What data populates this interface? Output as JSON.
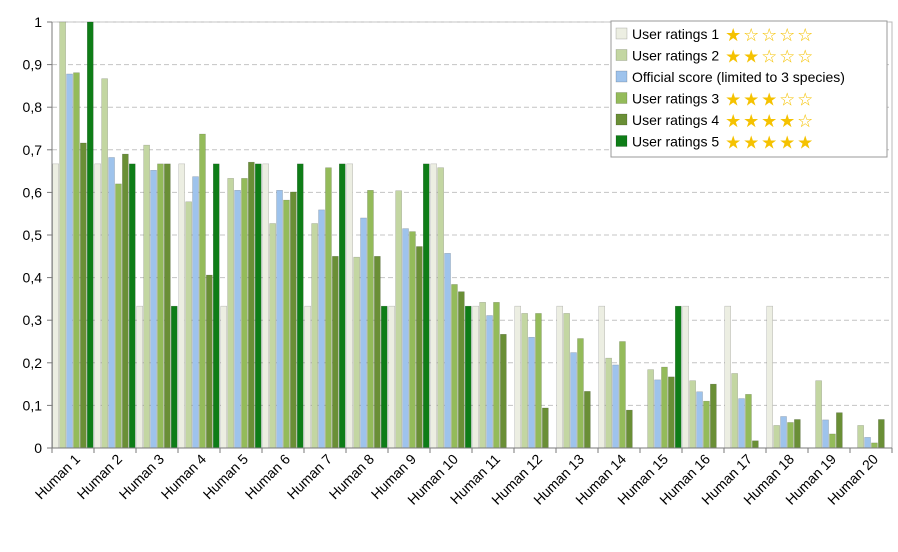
{
  "chart_data": {
    "type": "bar",
    "title": "",
    "xlabel": "",
    "ylabel": "",
    "ylim": [
      0,
      1
    ],
    "y_ticks": [
      "0",
      "0,1",
      "0,2",
      "0,3",
      "0,4",
      "0,5",
      "0,6",
      "0,7",
      "0,8",
      "0,9",
      "1"
    ],
    "y_tick_values": [
      0,
      0.1,
      0.2,
      0.3,
      0.4,
      0.5,
      0.6,
      0.7,
      0.8,
      0.9,
      1
    ],
    "grid": "horizontal dashed",
    "legend_position": "top-right",
    "categories": [
      "Human 1",
      "Human 2",
      "Human 3",
      "Human 4",
      "Human 5",
      "Human 6",
      "Human 7",
      "Human 8",
      "Human 9",
      "Human 10",
      "Human 11",
      "Human 12",
      "Human 13",
      "Human 14",
      "Human 15",
      "Human 16",
      "Human 17",
      "Human 18",
      "Human 19",
      "Human 20"
    ],
    "series": [
      {
        "name": "User ratings 1",
        "stars": 1,
        "color": "#eceee2",
        "values": [
          0.667,
          0.667,
          0.333,
          0.667,
          0.333,
          0.667,
          0.333,
          0.667,
          0.333,
          0.667,
          0.333,
          0.333,
          0.333,
          0.333,
          0,
          0.333,
          0.333,
          0.333,
          0,
          0
        ]
      },
      {
        "name": "User ratings 2",
        "stars": 2,
        "color": "#c3d6a2",
        "values": [
          1.0,
          0.867,
          0.711,
          0.578,
          0.633,
          0.527,
          0.527,
          0.448,
          0.604,
          0.658,
          0.342,
          0.316,
          0.316,
          0.211,
          0.184,
          0.158,
          0.175,
          0.053,
          0.158,
          0.053
        ]
      },
      {
        "name": "Official score (limited to 3 species)",
        "stars": 0,
        "color": "#9ec3ec",
        "values": [
          0.878,
          0.682,
          0.652,
          0.637,
          0.605,
          0.605,
          0.559,
          0.54,
          0.515,
          0.457,
          0.311,
          0.26,
          0.224,
          0.195,
          0.16,
          0.132,
          0.116,
          0.074,
          0.066,
          0.025
        ]
      },
      {
        "name": "User ratings 3",
        "stars": 3,
        "color": "#94bb5a",
        "values": [
          0.881,
          0.62,
          0.667,
          0.737,
          0.633,
          0.582,
          0.658,
          0.605,
          0.508,
          0.384,
          0.342,
          0.316,
          0.257,
          0.25,
          0.19,
          0.11,
          0.126,
          0.06,
          0.033,
          0.012
        ]
      },
      {
        "name": "User ratings 4",
        "stars": 4,
        "color": "#6a8f36",
        "values": [
          0.716,
          0.69,
          0.667,
          0.406,
          0.671,
          0.601,
          0.45,
          0.45,
          0.473,
          0.367,
          0.267,
          0.094,
          0.133,
          0.089,
          0.167,
          0.15,
          0.017,
          0.067,
          0.083,
          0.067
        ]
      },
      {
        "name": "User ratings 5",
        "stars": 5,
        "color": "#0e7d17",
        "values": [
          1.0,
          0.667,
          0.333,
          0.667,
          0.667,
          0.667,
          0.667,
          0.333,
          0.667,
          0.333,
          0,
          0,
          0,
          0,
          0.333,
          0,
          0,
          0,
          0,
          0
        ]
      }
    ]
  },
  "legend": {
    "star_full": "★",
    "star_empty": "☆",
    "star_count": 5
  }
}
